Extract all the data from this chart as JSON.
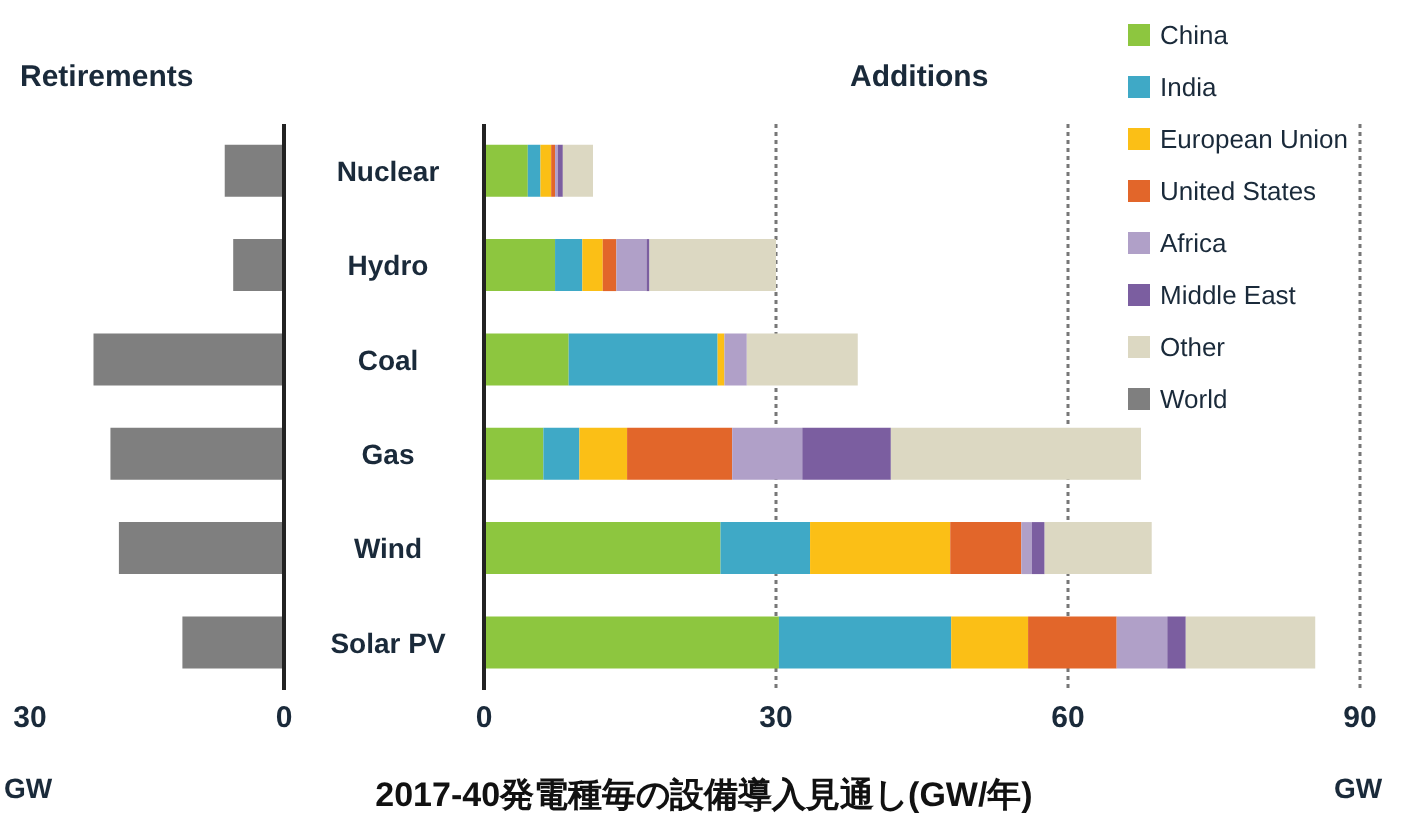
{
  "chart_data": [
    {
      "type": "bar",
      "orientation": "horizontal",
      "title": "Retirements",
      "xlabel": "GW",
      "categories": [
        null,
        null,
        null,
        null,
        null,
        null
      ],
      "xlim": [
        30,
        0
      ],
      "xticks": [
        30,
        0
      ],
      "series": [
        {
          "name": "World",
          "color": "#7f7f7f",
          "values": [
            7,
            6,
            22.5,
            20.5,
            19.5,
            12
          ]
        }
      ]
    },
    {
      "type": "bar",
      "orientation": "horizontal",
      "stacked": true,
      "title": "Additions",
      "xlabel": "GW",
      "categories": [
        "Nuclear",
        "Hydro",
        "Coal",
        "Gas",
        "Wind",
        "Solar PV"
      ],
      "xlim": [
        0,
        90
      ],
      "xticks": [
        0,
        30,
        60,
        90
      ],
      "grid": "x",
      "legend": "top right",
      "annotations": [
        "2017-40発電種毎の設備導入見通し(GW/年)"
      ],
      "series": [
        {
          "name": "China",
          "color": "#8dc63f",
          "values": [
            4.5,
            7.3,
            8.7,
            6.1,
            24.3,
            30.3
          ]
        },
        {
          "name": "India",
          "color": "#3fa9c6",
          "values": [
            1.3,
            2.8,
            15.3,
            3.7,
            9.2,
            17.7
          ]
        },
        {
          "name": "European Union",
          "color": "#fbbf16",
          "values": [
            1.1,
            2.1,
            0.7,
            4.9,
            14.4,
            7.9
          ]
        },
        {
          "name": "United States",
          "color": "#e2662a",
          "values": [
            0.4,
            1.4,
            0,
            10.8,
            7.3,
            9.1
          ]
        },
        {
          "name": "Africa",
          "color": "#b0a0c8",
          "values": [
            0.3,
            3.1,
            2.3,
            7.2,
            1.1,
            5.2
          ]
        },
        {
          "name": "Middle East",
          "color": "#7b5ea0",
          "values": [
            0.5,
            0.3,
            0,
            9.1,
            1.3,
            1.9
          ]
        },
        {
          "name": "Other",
          "color": "#dcd8c2",
          "values": [
            3.1,
            13,
            11.4,
            25.7,
            11,
            13.3
          ]
        }
      ]
    }
  ]
}
